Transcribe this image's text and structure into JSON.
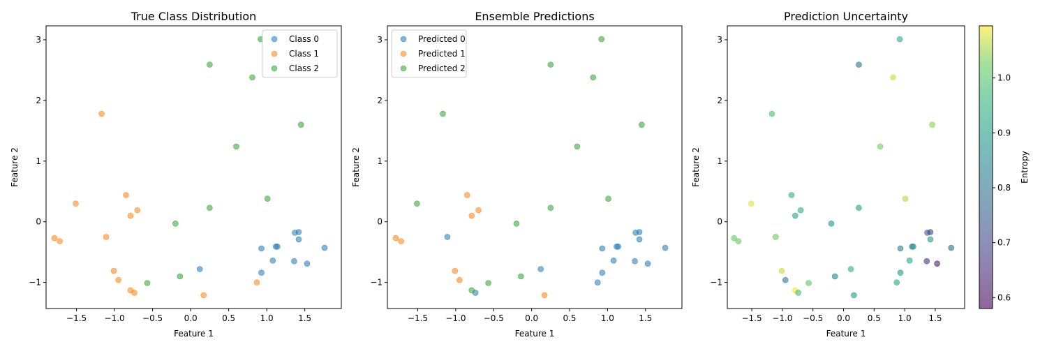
{
  "chart_data": [
    {
      "type": "scatter",
      "title": "True Class Distribution",
      "xlabel": "Feature 1",
      "ylabel": "Feature 2",
      "xlim": [
        -1.9,
        1.98
      ],
      "ylim": [
        -1.43,
        3.23
      ],
      "xticks": [
        -1.5,
        -1.0,
        -0.5,
        0.0,
        0.5,
        1.0,
        1.5
      ],
      "xtick_labels": [
        "−1.5",
        "−1.0",
        "−0.5",
        "0.0",
        "0.5",
        "1.0",
        "1.5"
      ],
      "yticks": [
        -1,
        0,
        1,
        2,
        3
      ],
      "ytick_labels": [
        "−1",
        "0",
        "1",
        "2",
        "3"
      ],
      "legend_position": "top-right",
      "colors": {
        "Class 0": "#1f77b4",
        "Class 1": "#ff7f0e",
        "Class 2": "#2ca02c"
      },
      "series": [
        {
          "name": "Class 0",
          "points": [
            [
              1.37,
              -0.18
            ],
            [
              1.42,
              -0.17
            ],
            [
              1.42,
              -0.29
            ],
            [
              1.12,
              -0.41
            ],
            [
              1.14,
              -0.41
            ],
            [
              1.76,
              -0.43
            ],
            [
              0.93,
              -0.44
            ],
            [
              1.08,
              -0.64
            ],
            [
              1.36,
              -0.65
            ],
            [
              1.53,
              -0.69
            ],
            [
              0.12,
              -0.78
            ],
            [
              0.93,
              -0.84
            ]
          ]
        },
        {
          "name": "Class 1",
          "points": [
            [
              -1.17,
              1.78
            ],
            [
              -1.51,
              0.3
            ],
            [
              -0.85,
              0.44
            ],
            [
              -0.7,
              0.19
            ],
            [
              -0.79,
              0.1
            ],
            [
              -1.79,
              -0.27
            ],
            [
              -1.72,
              -0.32
            ],
            [
              -1.11,
              -0.25
            ],
            [
              -1.01,
              -0.81
            ],
            [
              -0.95,
              -0.96
            ],
            [
              -0.79,
              -1.13
            ],
            [
              -0.74,
              -1.17
            ],
            [
              0.87,
              -1.0
            ],
            [
              0.17,
              -1.21
            ]
          ]
        },
        {
          "name": "Class 2",
          "points": [
            [
              0.92,
              3.01
            ],
            [
              0.25,
              2.59
            ],
            [
              0.81,
              2.38
            ],
            [
              1.45,
              1.6
            ],
            [
              0.6,
              1.24
            ],
            [
              1.01,
              0.38
            ],
            [
              0.25,
              0.23
            ],
            [
              -0.2,
              -0.03
            ],
            [
              -0.14,
              -0.9
            ],
            [
              -0.57,
              -1.01
            ]
          ]
        }
      ]
    },
    {
      "type": "scatter",
      "title": "Ensemble Predictions",
      "xlabel": "Feature 1",
      "ylabel": "Feature 2",
      "xlim": [
        -1.9,
        1.98
      ],
      "ylim": [
        -1.43,
        3.23
      ],
      "xticks": [
        -1.5,
        -1.0,
        -0.5,
        0.0,
        0.5,
        1.0,
        1.5
      ],
      "xtick_labels": [
        "−1.5",
        "−1.0",
        "−0.5",
        "0.0",
        "0.5",
        "1.0",
        "1.5"
      ],
      "yticks": [
        -1,
        0,
        1,
        2,
        3
      ],
      "ytick_labels": [
        "−1",
        "0",
        "1",
        "2",
        "3"
      ],
      "legend_position": "top-left",
      "colors": {
        "Predicted 0": "#1f77b4",
        "Predicted 1": "#ff7f0e",
        "Predicted 2": "#2ca02c"
      },
      "series": [
        {
          "name": "Predicted 0",
          "points": [
            [
              1.37,
              -0.18
            ],
            [
              1.42,
              -0.17
            ],
            [
              1.42,
              -0.29
            ],
            [
              1.12,
              -0.41
            ],
            [
              1.14,
              -0.41
            ],
            [
              1.76,
              -0.43
            ],
            [
              0.93,
              -0.44
            ],
            [
              1.08,
              -0.64
            ],
            [
              1.36,
              -0.65
            ],
            [
              1.53,
              -0.69
            ],
            [
              0.12,
              -0.78
            ],
            [
              0.93,
              -0.84
            ],
            [
              0.87,
              -1.0
            ],
            [
              -1.11,
              -0.25
            ],
            [
              -0.74,
              -1.17
            ]
          ]
        },
        {
          "name": "Predicted 1",
          "points": [
            [
              -0.85,
              0.44
            ],
            [
              -0.7,
              0.19
            ],
            [
              -0.79,
              0.1
            ],
            [
              -1.79,
              -0.27
            ],
            [
              -1.72,
              -0.32
            ],
            [
              -1.01,
              -0.81
            ],
            [
              -0.95,
              -0.96
            ],
            [
              0.17,
              -1.21
            ]
          ]
        },
        {
          "name": "Predicted 2",
          "points": [
            [
              0.92,
              3.01
            ],
            [
              0.25,
              2.59
            ],
            [
              0.81,
              2.38
            ],
            [
              1.45,
              1.6
            ],
            [
              0.6,
              1.24
            ],
            [
              1.01,
              0.38
            ],
            [
              0.25,
              0.23
            ],
            [
              -0.2,
              -0.03
            ],
            [
              -0.14,
              -0.9
            ],
            [
              -0.57,
              -1.01
            ],
            [
              -1.17,
              1.78
            ],
            [
              -1.51,
              0.3
            ],
            [
              -0.79,
              -1.13
            ]
          ]
        }
      ]
    },
    {
      "type": "scatter",
      "title": "Prediction Uncertainty",
      "xlabel": "Feature 1",
      "ylabel": "Feature 2",
      "xlim": [
        -1.9,
        1.98
      ],
      "ylim": [
        -1.43,
        3.23
      ],
      "xticks": [
        -1.5,
        -1.0,
        -0.5,
        0.0,
        0.5,
        1.0,
        1.5
      ],
      "xtick_labels": [
        "−1.5",
        "−1.0",
        "−0.5",
        "0.0",
        "0.5",
        "1.0",
        "1.5"
      ],
      "yticks": [
        -1,
        0,
        1,
        2,
        3
      ],
      "ytick_labels": [
        "−1",
        "0",
        "1",
        "2",
        "3"
      ],
      "colorbar": {
        "label": "Entropy",
        "range": [
          0.58,
          1.095
        ],
        "ticks": [
          0.6,
          0.7,
          0.8,
          0.9,
          1.0
        ],
        "tick_labels": [
          "0.6",
          "0.7",
          "0.8",
          "0.9",
          "1.0"
        ],
        "colormap": "viridis"
      },
      "points": [
        {
          "x": 0.92,
          "y": 3.01,
          "c": 0.94
        },
        {
          "x": 0.25,
          "y": 2.59,
          "c": 0.8
        },
        {
          "x": 0.81,
          "y": 2.38,
          "c": 1.07
        },
        {
          "x": 1.45,
          "y": 1.6,
          "c": 1.04
        },
        {
          "x": -1.17,
          "y": 1.78,
          "c": 0.99
        },
        {
          "x": 0.6,
          "y": 1.24,
          "c": 1.03
        },
        {
          "x": 1.01,
          "y": 0.38,
          "c": 1.06
        },
        {
          "x": -1.51,
          "y": 0.3,
          "c": 1.08
        },
        {
          "x": -0.85,
          "y": 0.44,
          "c": 0.95
        },
        {
          "x": -0.7,
          "y": 0.19,
          "c": 0.94
        },
        {
          "x": -0.79,
          "y": 0.1,
          "c": 0.92
        },
        {
          "x": 0.25,
          "y": 0.23,
          "c": 0.91
        },
        {
          "x": -0.2,
          "y": -0.03,
          "c": 0.89
        },
        {
          "x": -1.79,
          "y": -0.27,
          "c": 1.02
        },
        {
          "x": -1.72,
          "y": -0.32,
          "c": 1.02
        },
        {
          "x": -1.11,
          "y": -0.25,
          "c": 1.02
        },
        {
          "x": 1.37,
          "y": -0.18,
          "c": 0.74
        },
        {
          "x": 1.42,
          "y": -0.17,
          "c": 0.7
        },
        {
          "x": 1.42,
          "y": -0.29,
          "c": 0.89
        },
        {
          "x": 1.12,
          "y": -0.41,
          "c": 0.85
        },
        {
          "x": 1.14,
          "y": -0.41,
          "c": 0.86
        },
        {
          "x": 1.76,
          "y": -0.43,
          "c": 0.78
        },
        {
          "x": 0.93,
          "y": -0.44,
          "c": 0.83
        },
        {
          "x": 1.08,
          "y": -0.64,
          "c": 0.92
        },
        {
          "x": 1.36,
          "y": -0.65,
          "c": 0.68
        },
        {
          "x": 1.53,
          "y": -0.69,
          "c": 0.62
        },
        {
          "x": 0.12,
          "y": -0.78,
          "c": 0.95
        },
        {
          "x": 0.93,
          "y": -0.84,
          "c": 0.9
        },
        {
          "x": -1.01,
          "y": -0.81,
          "c": 1.07
        },
        {
          "x": -0.95,
          "y": -0.96,
          "c": 0.82
        },
        {
          "x": -0.14,
          "y": -0.9,
          "c": 0.84
        },
        {
          "x": -0.57,
          "y": -1.01,
          "c": 1.0
        },
        {
          "x": -0.79,
          "y": -1.13,
          "c": 1.09
        },
        {
          "x": -0.74,
          "y": -1.17,
          "c": 0.98
        },
        {
          "x": 0.87,
          "y": -1.0,
          "c": 0.92
        },
        {
          "x": 0.17,
          "y": -1.21,
          "c": 0.9
        }
      ]
    }
  ]
}
